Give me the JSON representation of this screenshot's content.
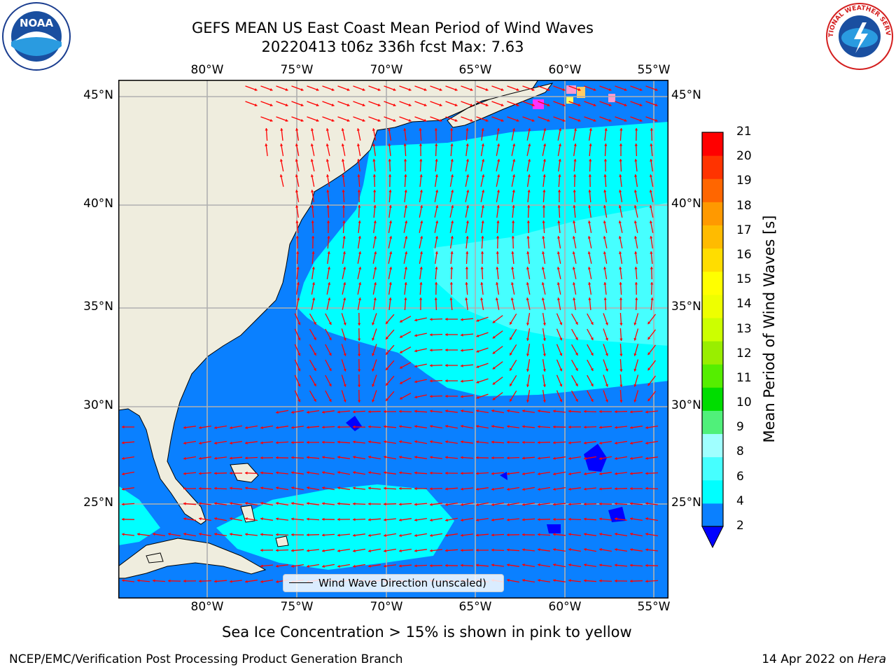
{
  "title": {
    "line1": "GEFS MEAN US East Coast Mean Period of Wind Waves",
    "line2": "20220413 t06z 336h fcst   Max: 7.63"
  },
  "logos": {
    "left": "NOAA",
    "right": "NATIONAL WEATHER SERVICE"
  },
  "map": {
    "lon_labels_top": [
      "80°W",
      "75°W",
      "70°W",
      "65°W",
      "60°W",
      "55°W"
    ],
    "lon_labels_bottom": [
      "80°W",
      "75°W",
      "70°W",
      "65°W",
      "60°W",
      "55°W"
    ],
    "lat_labels_left": [
      "45°N",
      "40°N",
      "35°N",
      "30°N",
      "25°N"
    ],
    "lat_labels_right": [
      "45°N",
      "40°N",
      "35°N",
      "30°N",
      "25°N"
    ],
    "legend": "Wind Wave Direction (unscaled)",
    "colors": {
      "land": "#efedde",
      "band_2_4": "#0a80ff",
      "band_4_6": "#00ffff",
      "band_6_8": "#46ffff",
      "band_below_2": "#0000ff",
      "arrow": "#ff0000",
      "sea_ice": [
        "#ff33ff",
        "#ff99cc",
        "#ffcc66",
        "#ffff66"
      ]
    }
  },
  "colorbar": {
    "title": "Mean Period of Wind Waves [s]",
    "tick_labels": [
      "2",
      "4",
      "6",
      "8",
      "9",
      "10",
      "11",
      "12",
      "13",
      "14",
      "15",
      "16",
      "17",
      "18",
      "19",
      "20",
      "21"
    ],
    "colors": [
      "#0a80ff",
      "#00ffff",
      "#46ffff",
      "#a0ffff",
      "#50f07a",
      "#00dd00",
      "#55ee00",
      "#99ee00",
      "#ccff00",
      "#eeff00",
      "#ffff00",
      "#ffdd00",
      "#ffbb00",
      "#ff9900",
      "#ff6600",
      "#ff3300",
      "#ff0000"
    ],
    "extend_color": "#0000ff"
  },
  "note": "Sea Ice Concentration > 15% is shown in pink to yellow",
  "footer": {
    "left": "NCEP/EMC/Verification Post Processing Product Generation Branch",
    "right_prefix": "14 Apr 2022 on ",
    "right_machine": "Hera"
  }
}
